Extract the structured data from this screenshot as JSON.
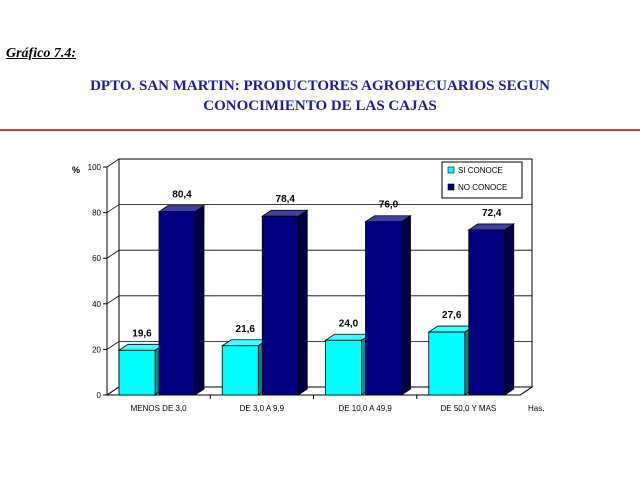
{
  "header": {
    "figure_label": "Gráfico 7.4:",
    "title_line1": "DPTO. SAN MARTIN: PRODUCTORES AGROPECUARIOS SEGUN",
    "title_line2": "CONOCIMIENTO DE LAS CAJAS"
  },
  "chart_data": {
    "type": "bar",
    "title": "DPTO. SAN MARTIN: PRODUCTORES AGROPECUARIOS SEGUN CONOCIMIENTO DE LAS CAJAS",
    "ylabel": "%",
    "xlabel": "Has.",
    "ylim": [
      0,
      100
    ],
    "yticks": [
      0,
      20,
      40,
      60,
      80,
      100
    ],
    "categories": [
      "MENOS DE 3,0",
      "DE 3,0 A 9,9",
      "DE 10,0 A 49,9",
      "DE 50,0 Y MAS"
    ],
    "series": [
      {
        "name": "SI CONOCE",
        "values": [
          19.6,
          21.6,
          24.0,
          27.6
        ],
        "labels": [
          "19,6",
          "21,6",
          "24,0",
          "27,6"
        ],
        "color": "#00ffff"
      },
      {
        "name": "NO CONOCE",
        "values": [
          80.4,
          78.4,
          76.0,
          72.4
        ],
        "labels": [
          "80,4",
          "78,4",
          "76,0",
          "72,4"
        ],
        "color": "#000080"
      }
    ],
    "grid": true,
    "legend_position": "top-right",
    "style": "3d-bar"
  }
}
